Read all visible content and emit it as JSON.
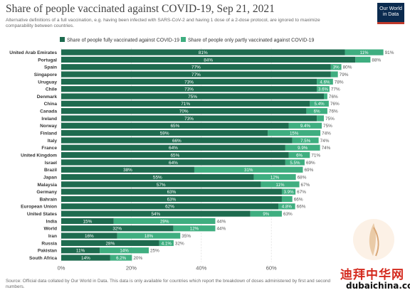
{
  "header": {
    "title": "Share of people vaccinated against COVID-19, Sep 21, 2021",
    "subtitle": "Alternative definitions of a full vaccination, e.g. having been infected with SARS-CoV-2 and having 1 dose of a 2-dose protocol, are ignored to maximize comparability between countries.",
    "logo_line1": "Our World",
    "logo_line2": "in Data"
  },
  "source": "Source: Official data collated by Our World in Data. This data is only available for countries which report the breakdown of doses administered by first and second numbers.",
  "watermark": {
    "chinese": "迪拜中华网",
    "domain": "dubaichina.com"
  },
  "colors": {
    "fully": "#1e6b4f",
    "partly": "#3fae80",
    "label": "#333333",
    "grid": "#dddddd"
  },
  "chart_data": {
    "type": "bar",
    "orientation": "horizontal",
    "stacked": true,
    "legend": "top",
    "xlim": [
      0,
      92
    ],
    "xticks": [
      "0%",
      "20%",
      "40%",
      "60%"
    ],
    "xtick_values": [
      0,
      20,
      40,
      60
    ],
    "categories": [
      "United Arab Emirates",
      "Portugal",
      "Spain",
      "Singapore",
      "Uruguay",
      "Chile",
      "Denmark",
      "China",
      "Canada",
      "Ireland",
      "Norway",
      "Finland",
      "Italy",
      "France",
      "United Kingdom",
      "Israel",
      "Brazil",
      "Japan",
      "Malaysia",
      "Germany",
      "Bahrain",
      "European Union",
      "United States",
      "India",
      "World",
      "Iran",
      "Russia",
      "Pakistan",
      "South Africa"
    ],
    "series": [
      {
        "name": "Share of people fully vaccinated against COVID-19",
        "values": [
          81,
          84,
          77,
          77,
          73,
          73,
          75,
          71,
          70,
          73,
          65,
          59,
          66,
          64,
          65,
          64,
          38,
          55,
          57,
          63,
          63,
          62,
          54,
          15,
          32,
          16,
          28,
          11,
          14
        ],
        "labels": [
          "81%",
          "84%",
          "77%",
          "77%",
          "73%",
          "73%",
          "75%",
          "71%",
          "70%",
          "73%",
          "65%",
          "59%",
          "66%",
          "64%",
          "65%",
          "64%",
          "38%",
          "55%",
          "57%",
          "63%",
          "63%",
          "62%",
          "54%",
          "15%",
          "32%",
          "16%",
          "28%",
          "11%",
          "14%"
        ]
      },
      {
        "name": "Share of people only partly vaccinated against COVID-19",
        "values": [
          11,
          4.3,
          3,
          2,
          4.6,
          3.6,
          1,
          5.4,
          6,
          2,
          9.4,
          15,
          7.5,
          9.9,
          6,
          5.5,
          31,
          12,
          11,
          3.9,
          3,
          4.8,
          9,
          29,
          12,
          18,
          4.1,
          14,
          6.2
        ],
        "labels": [
          "11%",
          "",
          "3%",
          "",
          "4.6%",
          "3.6%",
          "",
          "5.4%",
          "6%",
          "",
          "9.4%",
          "15%",
          "7.5%",
          "9.9%",
          "6%",
          "5.5%",
          "31%",
          "12%",
          "11%",
          "3.9%",
          "",
          "4.8%",
          "9%",
          "29%",
          "12%",
          "18%",
          "4.1%",
          "14%",
          "6.2%"
        ]
      }
    ],
    "totals": [
      "91%",
      "88%",
      "80%",
      "79%",
      "78%",
      "77%",
      "76%",
      "76%",
      "76%",
      "75%",
      "75%",
      "74%",
      "74%",
      "74%",
      "71%",
      "69%",
      "69%",
      "68%",
      "67%",
      "67%",
      "66%",
      "66%",
      "63%",
      "44%",
      "44%",
      "35%",
      "32%",
      "25%",
      "20%"
    ]
  }
}
